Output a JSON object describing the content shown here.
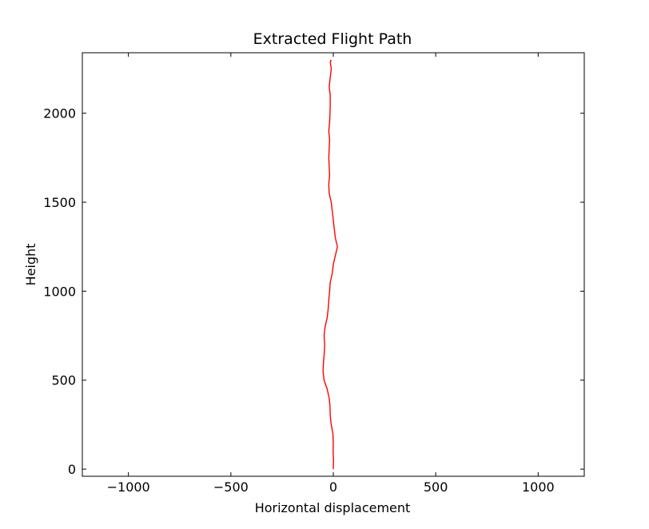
{
  "chart_data": {
    "type": "line",
    "title": "Extracted Flight Path",
    "xlabel": "Horizontal displacement",
    "ylabel": "Height",
    "xlim": [
      -1225,
      1225
    ],
    "ylim": [
      -40,
      2340
    ],
    "xticks": [
      -1000,
      -500,
      0,
      500,
      1000
    ],
    "xtick_labels": [
      "−1000",
      "−500",
      "0",
      "500",
      "1000"
    ],
    "yticks": [
      0,
      500,
      1000,
      1500,
      2000
    ],
    "ytick_labels": [
      "0",
      "500",
      "1000",
      "1500",
      "2000"
    ],
    "grid": false,
    "series": [
      {
        "color": "#ff0000",
        "points": [
          [
            0,
            0
          ],
          [
            1,
            50
          ],
          [
            -1,
            100
          ],
          [
            0,
            150
          ],
          [
            -2,
            200
          ],
          [
            -10,
            250
          ],
          [
            -15,
            300
          ],
          [
            -16,
            350
          ],
          [
            -20,
            400
          ],
          [
            -30,
            450
          ],
          [
            -45,
            500
          ],
          [
            -50,
            550
          ],
          [
            -48,
            600
          ],
          [
            -44,
            650
          ],
          [
            -42,
            700
          ],
          [
            -45,
            750
          ],
          [
            -40,
            800
          ],
          [
            -30,
            850
          ],
          [
            -25,
            900
          ],
          [
            -22,
            950
          ],
          [
            -18,
            1000
          ],
          [
            -15,
            1050
          ],
          [
            -5,
            1100
          ],
          [
            0,
            1150
          ],
          [
            10,
            1200
          ],
          [
            20,
            1250
          ],
          [
            10,
            1300
          ],
          [
            5,
            1350
          ],
          [
            0,
            1400
          ],
          [
            -5,
            1450
          ],
          [
            -10,
            1500
          ],
          [
            -20,
            1550
          ],
          [
            -22,
            1600
          ],
          [
            -18,
            1650
          ],
          [
            -20,
            1700
          ],
          [
            -22,
            1750
          ],
          [
            -20,
            1800
          ],
          [
            -18,
            1850
          ],
          [
            -22,
            1900
          ],
          [
            -18,
            1950
          ],
          [
            -16,
            2000
          ],
          [
            -15,
            2050
          ],
          [
            -15,
            2100
          ],
          [
            -20,
            2150
          ],
          [
            -15,
            2200
          ],
          [
            -10,
            2250
          ],
          [
            -15,
            2290
          ],
          [
            -10,
            2300
          ]
        ]
      }
    ]
  }
}
